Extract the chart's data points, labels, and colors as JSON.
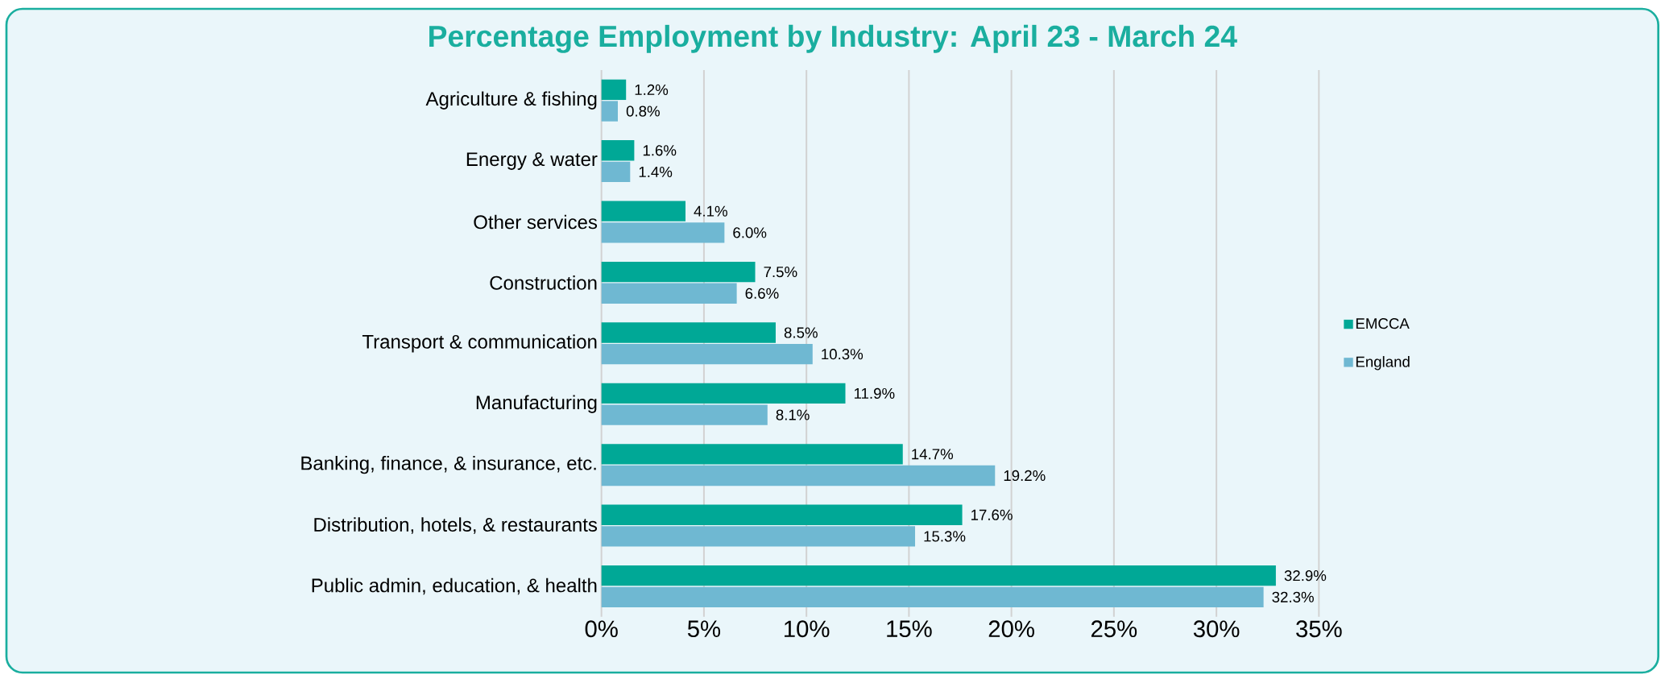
{
  "chart_data": {
    "type": "bar",
    "orientation": "horizontal",
    "title": "Percentage Employment by Industry: April 23 - March 24",
    "categories": [
      "Agriculture & fishing",
      "Energy & water",
      "Other services",
      "Construction",
      "Transport & communication",
      "Manufacturing",
      "Banking, finance, & insurance, etc.",
      "Distribution, hotels, & restaurants",
      "Public admin, education, & health"
    ],
    "series": [
      {
        "name": "EMCCA",
        "color": "#00a896",
        "values": [
          1.2,
          1.6,
          4.1,
          7.5,
          8.5,
          11.9,
          14.7,
          17.6,
          32.9
        ],
        "value_labels": [
          "1.2%",
          "1.6%",
          "4.1%",
          "7.5%",
          "8.5%",
          "11.9%",
          "14.7%",
          "17.6%",
          "32.9%"
        ]
      },
      {
        "name": "England",
        "color": "#6fb8d2",
        "values": [
          0.8,
          1.4,
          6.0,
          6.6,
          10.3,
          8.1,
          19.2,
          15.3,
          32.3
        ],
        "value_labels": [
          "0.8%",
          "1.4%",
          "6.0%",
          "6.6%",
          "10.3%",
          "8.1%",
          "19.2%",
          "15.3%",
          "32.3%"
        ]
      }
    ],
    "xlim": [
      0,
      35
    ],
    "xticks": [
      {
        "value": 0,
        "label": "0%"
      },
      {
        "value": 5,
        "label": "5%"
      },
      {
        "value": 10,
        "label": "10%"
      },
      {
        "value": 15,
        "label": "15%"
      },
      {
        "value": 20,
        "label": "20%"
      },
      {
        "value": 25,
        "label": "25%"
      },
      {
        "value": 30,
        "label": "30%"
      },
      {
        "value": 35,
        "label": "35%"
      }
    ],
    "grid": "x",
    "legend": "right"
  }
}
